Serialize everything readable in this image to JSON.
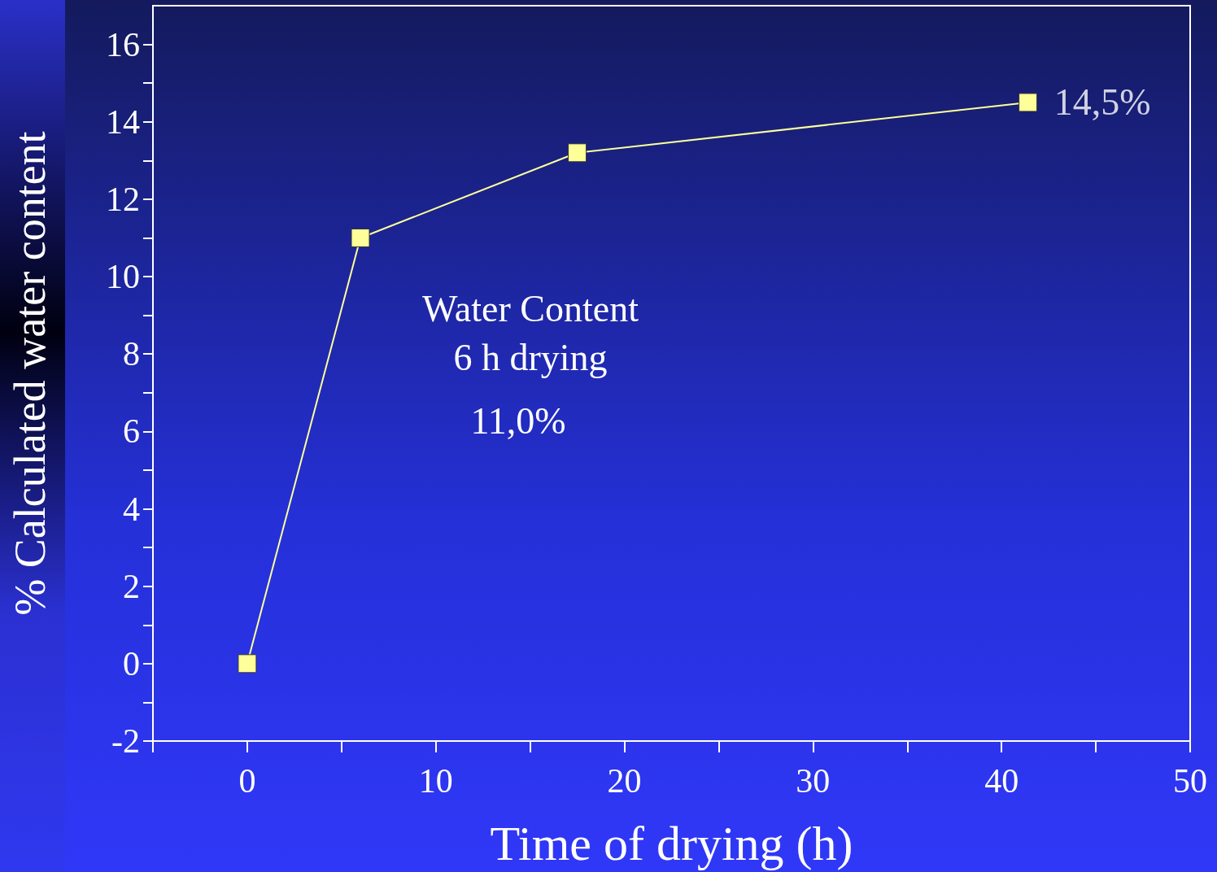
{
  "chart_data": {
    "type": "line",
    "xlabel": "Time of drying (h)",
    "ylabel": "% Calculated water content",
    "x": [
      0,
      6,
      17.5,
      41.4
    ],
    "series": [
      {
        "color": "#ffff99",
        "values": [
          0,
          11.0,
          13.2,
          14.5
        ]
      }
    ],
    "xlim": [
      -5,
      50
    ],
    "xticks": [
      {
        "value": -5,
        "label": null
      },
      0,
      {
        "value": 5,
        "label": null
      },
      10,
      {
        "value": 15,
        "label": null
      },
      20,
      {
        "value": 25,
        "label": null
      },
      30,
      {
        "value": 35,
        "label": null
      },
      40,
      {
        "value": 45,
        "label": null
      },
      50
    ],
    "ylim": [
      -2,
      17
    ],
    "yticks": [
      -2,
      {
        "value": -1,
        "label": null
      },
      0,
      {
        "value": 1,
        "label": null
      },
      2,
      {
        "value": 3,
        "label": null
      },
      4,
      {
        "value": 5,
        "label": null
      },
      6,
      {
        "value": 7,
        "label": null
      },
      8,
      {
        "value": 9,
        "label": null
      },
      10,
      {
        "value": 11,
        "label": null
      },
      12,
      {
        "value": 13,
        "label": null
      },
      14,
      {
        "value": 15,
        "label": null
      },
      16
    ],
    "annotations": [
      "Water Content",
      "6 h drying",
      "11,0%",
      {
        "text": "14,5%",
        "x": 41.4,
        "y": 14.5
      }
    ],
    "grid": false,
    "marker": "square",
    "line_style": "solid"
  }
}
